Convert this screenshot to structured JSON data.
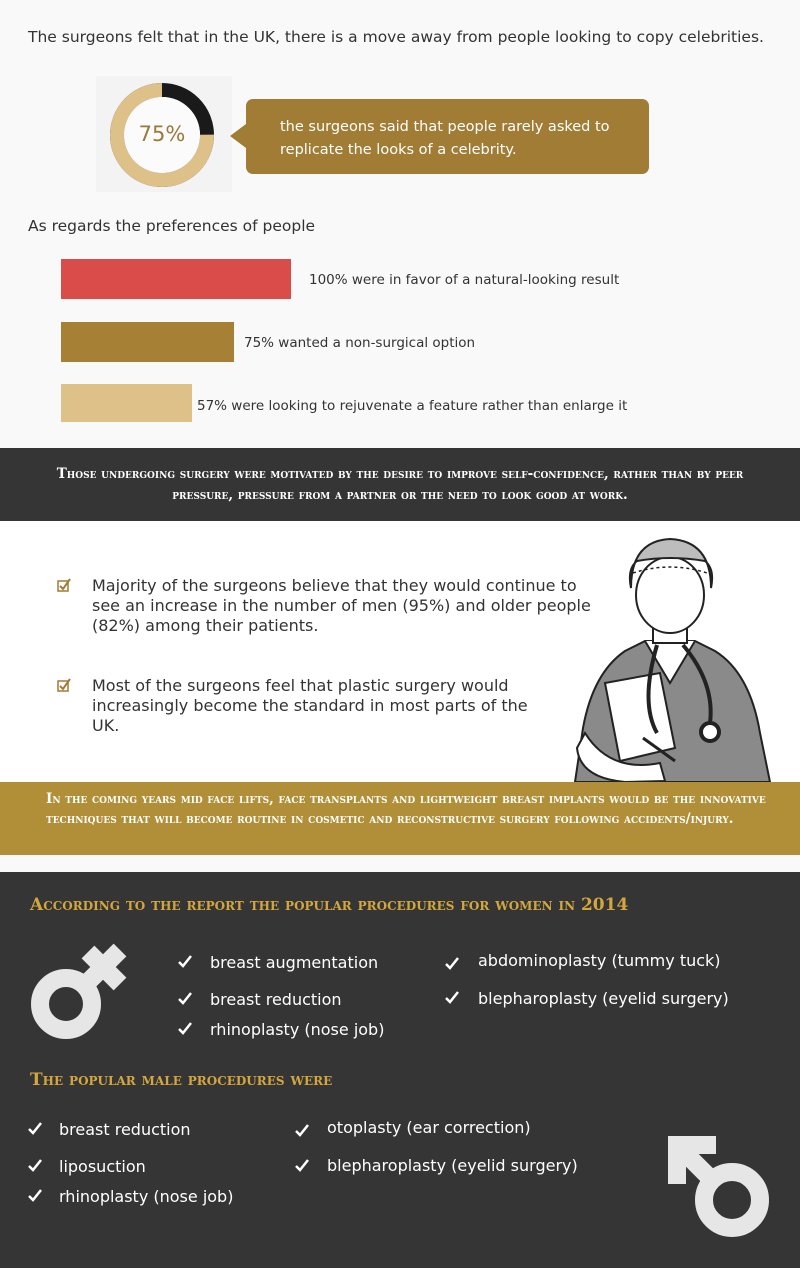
{
  "intro_text": "The surgeons felt that in the UK, there is a move away from people looking to copy celebrities.",
  "stat": {
    "percent_label": "75%",
    "percent_value": 0.75,
    "text": "the surgeons said that people rarely asked to replicate the looks of a celebrity."
  },
  "preferences": {
    "title": "As regards the preferences of people",
    "bars": [
      {
        "label": "100% were in favor of a natural-looking result",
        "value": 100,
        "color": "#d94c4a"
      },
      {
        "label": "75% wanted a non-surgical option",
        "value": 75,
        "color": "#a68034"
      },
      {
        "label": "57% were looking to rejuvenate a feature rather than enlarge it",
        "value": 57,
        "color": "#dec188"
      }
    ]
  },
  "motivation_text": "Those undergoing surgery were motivated by the desire to improve self-confidence, rather than by peer pressure, pressure from a partner or the need to look good at work.",
  "beliefs": [
    "Majority of the surgeons believe that they would continue to see an increase in the number of men (95%) and older people (82%) among their patients.",
    "Most of the surgeons feel that plastic surgery would increasingly become the standard in most parts of the UK."
  ],
  "innovation_text": "In the coming years mid face lifts, face transplants and lightweight breast implants would be the innovative techniques that will become routine in cosmetic and reconstructive surgery following accidents/injury.",
  "women": {
    "heading": "According to the report the popular procedures for women in 2014",
    "col1": [
      "breast augmentation",
      "breast reduction",
      "rhinoplasty (nose job)"
    ],
    "col2": [
      "abdominoplasty (tummy tuck)",
      "blepharoplasty (eyelid surgery)"
    ]
  },
  "men": {
    "heading": "The popular male procedures were",
    "col1": [
      "breast reduction",
      "liposuction",
      "rhinoplasty (nose job)"
    ],
    "col2": [
      "otoplasty (ear correction)",
      "blepharoplasty (eyelid surgery)"
    ]
  },
  "colors": {
    "gold": "#a07c35",
    "light_gold": "#dec188",
    "red": "#d94c4a",
    "dark": "#353535",
    "heading_gold": "#d4a73e"
  }
}
